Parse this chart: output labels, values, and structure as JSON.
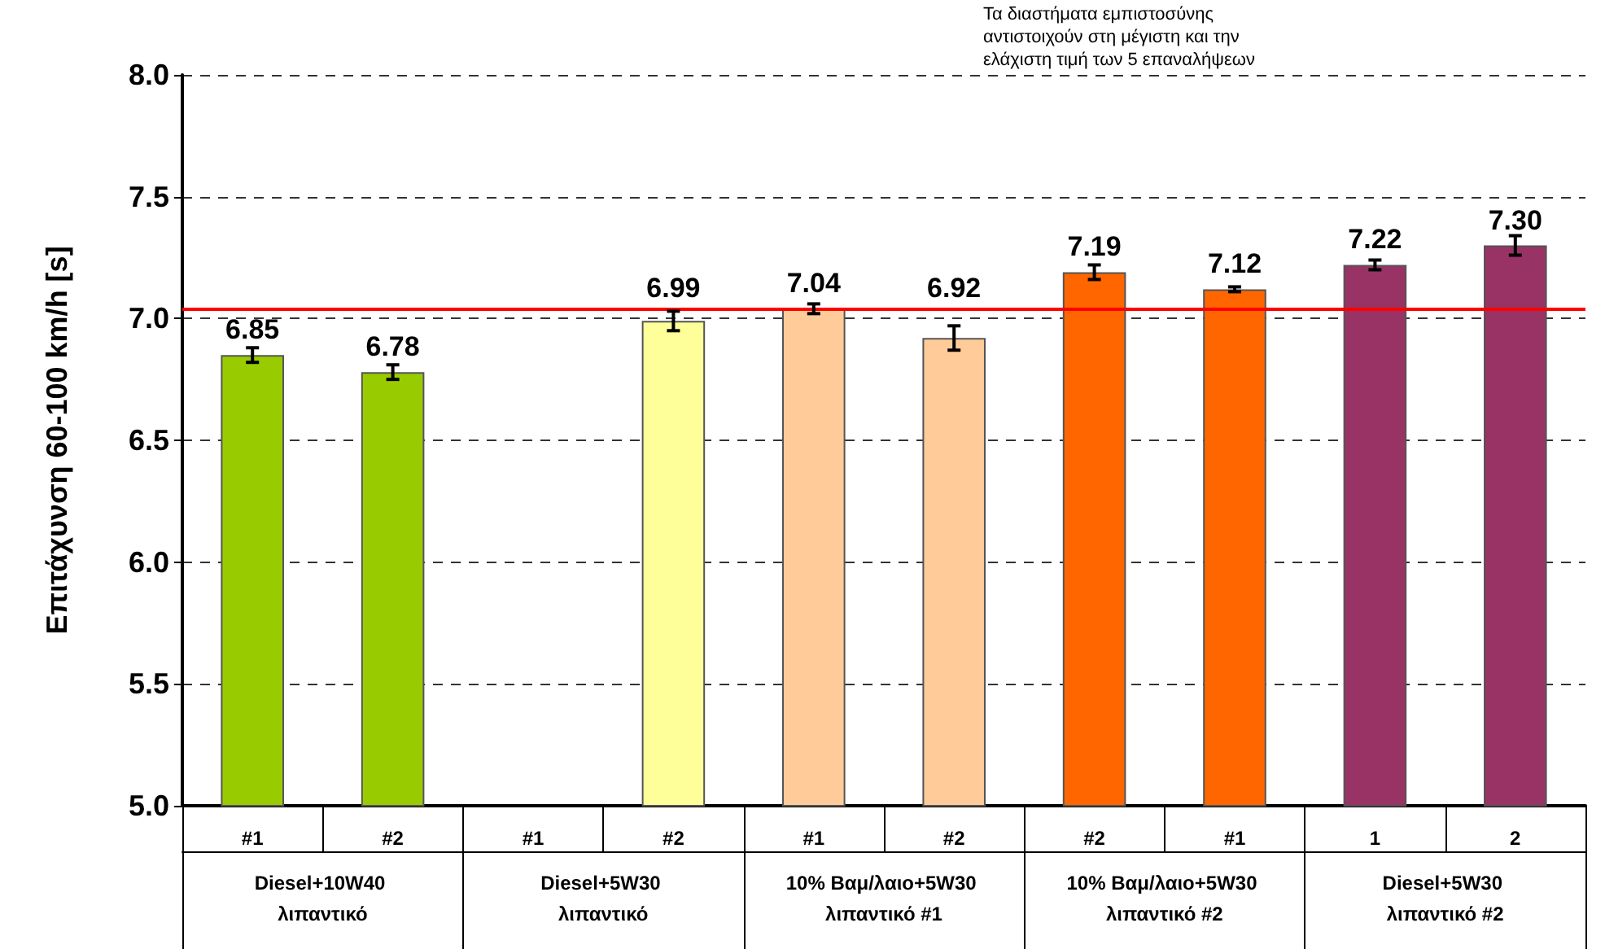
{
  "chart_data": {
    "type": "bar",
    "ylabel": "Επιτάχυνση 60-100 km/h [s]",
    "categories": [
      "#1",
      "#2",
      "#1",
      "#2",
      "#1",
      "#2",
      "#2",
      "#1",
      "1",
      "2"
    ],
    "values": [
      6.85,
      6.78,
      null,
      6.99,
      7.04,
      6.92,
      7.19,
      7.12,
      7.22,
      7.3
    ],
    "value_labels": [
      "6.85",
      "6.78",
      null,
      "6.99",
      "7.04",
      "6.92",
      "7.19",
      "7.12",
      "7.22",
      "7.30"
    ],
    "errors": [
      0.03,
      0.03,
      null,
      0.04,
      0.02,
      0.05,
      0.03,
      0.01,
      0.02,
      0.04
    ],
    "colors": [
      "#99cc00",
      "#99cc00",
      null,
      "#ffff99",
      "#ffcc99",
      "#ffcc99",
      "#ff6600",
      "#ff6600",
      "#993366",
      "#993366"
    ],
    "ylim": [
      5.0,
      8.0
    ],
    "yticks": [
      {
        "value": 5,
        "label": "5.0"
      },
      {
        "value": 5.5,
        "label": "5.5"
      },
      {
        "value": 6,
        "label": "6.0"
      },
      {
        "value": 6.5,
        "label": "6.5"
      },
      {
        "value": 7,
        "label": "7.0"
      },
      {
        "value": 7.5,
        "label": "7.5"
      },
      {
        "value": 8,
        "label": "8.0"
      }
    ],
    "grid": "y",
    "ref_lines": [
      {
        "axis": "y",
        "value": 7.04,
        "color": "#ff0000"
      }
    ],
    "annotations": [
      "Diesel+10W40 λιπαντικό",
      "Diesel+5W30 λιπαντικό",
      "10% Βαμ/λαιο+5W30 λιπαντικό #1",
      "10% Βαμ/λαιο+5W30 λιπαντικό #2",
      "Diesel+5W30 λιπαντικό #2",
      "Τα διαστήματα εμπιστοσύνης αντιστοιχούν στη μέγιστη και την ελάχιστη τιμή των 5 επαναλήψεων"
    ]
  }
}
